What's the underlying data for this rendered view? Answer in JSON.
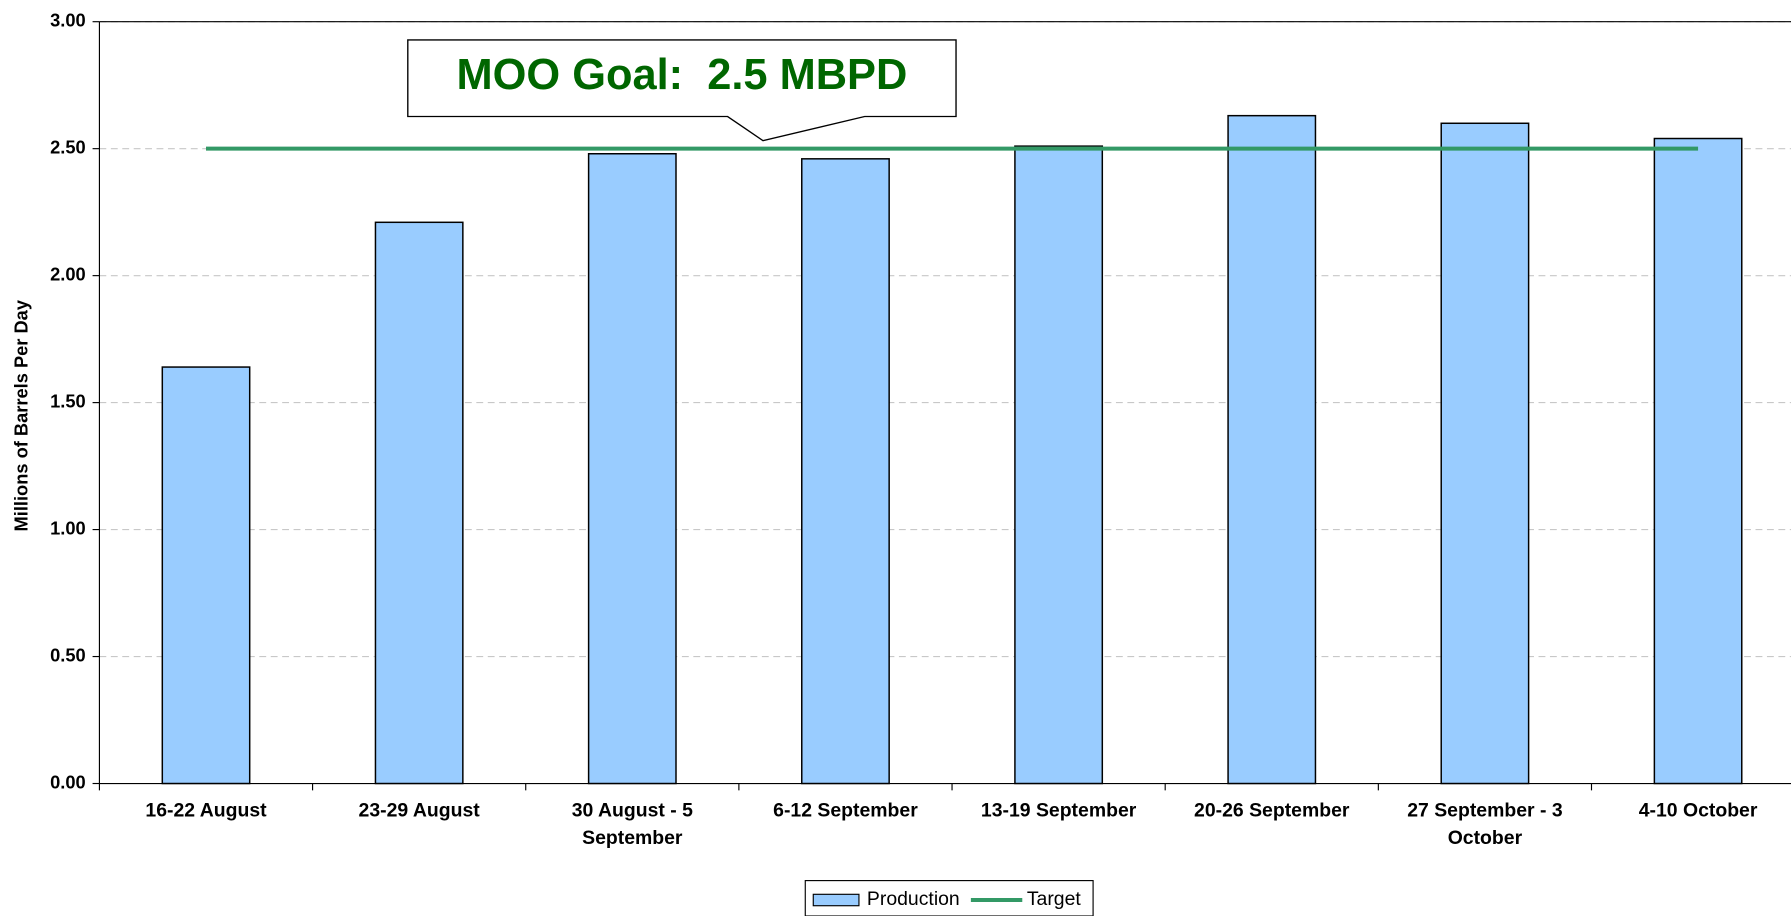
{
  "chart_data": {
    "type": "bar",
    "y_label": "Millions of Barrels Per Day",
    "annotation": "MOO Goal:  2.5 MBPD",
    "categories": [
      "16-22 August",
      "23-29 August",
      "30 August - 5 September",
      "6-12 September",
      "13-19 September",
      "20-26 September",
      "27 September - 3 October",
      "4-10 October"
    ],
    "series": [
      {
        "name": "Production",
        "type": "bar",
        "color": "#99ccff",
        "values": [
          1.64,
          2.21,
          2.48,
          2.46,
          2.51,
          2.63,
          2.6,
          2.54
        ]
      },
      {
        "name": "Target",
        "type": "line",
        "color": "#339966",
        "values": [
          2.5,
          2.5,
          2.5,
          2.5,
          2.5,
          2.5,
          2.5,
          2.5
        ]
      }
    ],
    "ylim": [
      0,
      3
    ],
    "yticks": [
      {
        "value": 0,
        "label": "0.00"
      },
      {
        "value": 0.5,
        "label": "0.50"
      },
      {
        "value": 1,
        "label": "1.00"
      },
      {
        "value": 1.5,
        "label": "1.50"
      },
      {
        "value": 2,
        "label": "2.00"
      },
      {
        "value": 2.5,
        "label": "2.50"
      },
      {
        "value": 3,
        "label": "3.00"
      }
    ],
    "grid": true,
    "legend": "bottom"
  }
}
